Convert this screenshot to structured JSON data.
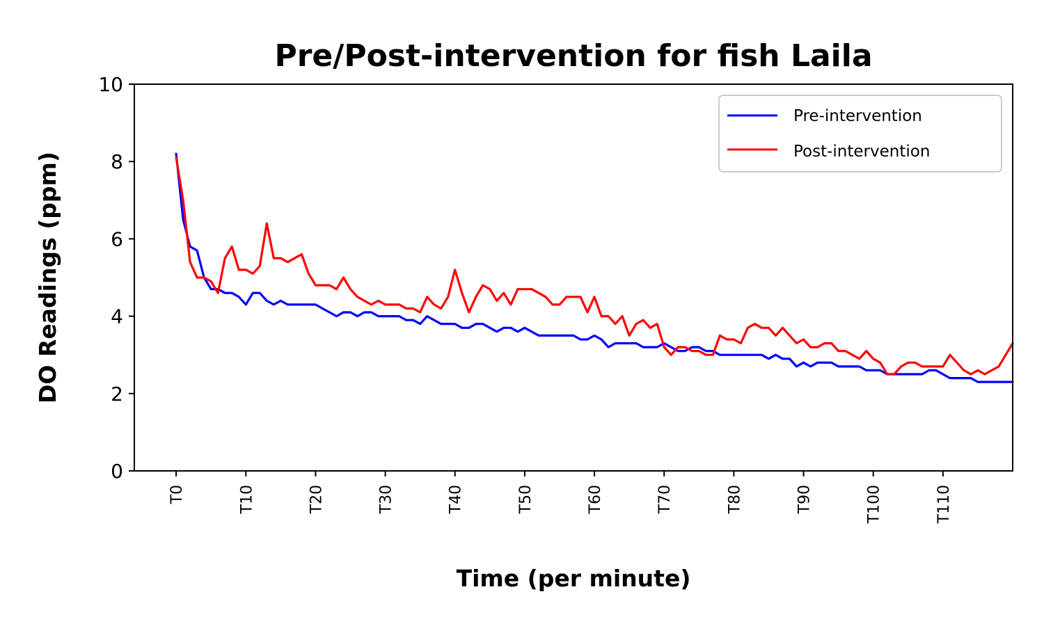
{
  "chart_data": {
    "type": "line",
    "title": "Pre/Post-intervention for fish Laila",
    "xlabel": "Time (per minute)",
    "ylabel": "DO Readings (ppm)",
    "ylim": [
      0,
      10
    ],
    "yticks": [
      0,
      2,
      4,
      6,
      8,
      10
    ],
    "xlim": [
      -6,
      120
    ],
    "xtick_values": [
      0,
      10,
      20,
      30,
      40,
      50,
      60,
      70,
      80,
      90,
      100,
      110
    ],
    "xtick_labels": [
      "T0",
      "T10",
      "T20",
      "T30",
      "T40",
      "T50",
      "T60",
      "T70",
      "T80",
      "T90",
      "T100",
      "T110"
    ],
    "legend_position": "upper right",
    "grid": false,
    "series": [
      {
        "name": "Pre-intervention",
        "color": "#0000ff",
        "values": [
          8.2,
          6.5,
          5.8,
          5.7,
          5.0,
          4.7,
          4.7,
          4.6,
          4.6,
          4.5,
          4.3,
          4.6,
          4.6,
          4.4,
          4.3,
          4.4,
          4.3,
          4.3,
          4.3,
          4.3,
          4.3,
          4.2,
          4.1,
          4.0,
          4.1,
          4.1,
          4.0,
          4.1,
          4.1,
          4.0,
          4.0,
          4.0,
          4.0,
          3.9,
          3.9,
          3.8,
          4.0,
          3.9,
          3.8,
          3.8,
          3.8,
          3.7,
          3.7,
          3.8,
          3.8,
          3.7,
          3.6,
          3.7,
          3.7,
          3.6,
          3.7,
          3.6,
          3.5,
          3.5,
          3.5,
          3.5,
          3.5,
          3.5,
          3.4,
          3.4,
          3.5,
          3.4,
          3.2,
          3.3,
          3.3,
          3.3,
          3.3,
          3.2,
          3.2,
          3.2,
          3.3,
          3.2,
          3.1,
          3.1,
          3.2,
          3.2,
          3.1,
          3.1,
          3.0,
          3.0,
          3.0,
          3.0,
          3.0,
          3.0,
          3.0,
          2.9,
          3.0,
          2.9,
          2.9,
          2.7,
          2.8,
          2.7,
          2.8,
          2.8,
          2.8,
          2.7,
          2.7,
          2.7,
          2.7,
          2.6,
          2.6,
          2.6,
          2.5,
          2.5,
          2.5,
          2.5,
          2.5,
          2.5,
          2.6,
          2.6,
          2.5,
          2.4,
          2.4,
          2.4,
          2.4,
          2.3,
          2.3,
          2.3,
          2.3,
          2.3,
          2.3
        ]
      },
      {
        "name": "Post-intervention",
        "color": "#ff0000",
        "values": [
          8.1,
          7.0,
          5.4,
          5.0,
          5.0,
          4.9,
          4.6,
          5.5,
          5.8,
          5.2,
          5.2,
          5.1,
          5.3,
          6.4,
          5.5,
          5.5,
          5.4,
          5.5,
          5.6,
          5.1,
          4.8,
          4.8,
          4.8,
          4.7,
          5.0,
          4.7,
          4.5,
          4.4,
          4.3,
          4.4,
          4.3,
          4.3,
          4.3,
          4.2,
          4.2,
          4.1,
          4.5,
          4.3,
          4.2,
          4.5,
          5.2,
          4.6,
          4.1,
          4.5,
          4.8,
          4.7,
          4.4,
          4.6,
          4.3,
          4.7,
          4.7,
          4.7,
          4.6,
          4.5,
          4.3,
          4.3,
          4.5,
          4.5,
          4.5,
          4.1,
          4.5,
          4.0,
          4.0,
          3.8,
          4.0,
          3.5,
          3.8,
          3.9,
          3.7,
          3.8,
          3.2,
          3.0,
          3.2,
          3.2,
          3.1,
          3.1,
          3.0,
          3.0,
          3.5,
          3.4,
          3.4,
          3.3,
          3.7,
          3.8,
          3.7,
          3.7,
          3.5,
          3.7,
          3.5,
          3.3,
          3.4,
          3.2,
          3.2,
          3.3,
          3.3,
          3.1,
          3.1,
          3.0,
          2.9,
          3.1,
          2.9,
          2.8,
          2.5,
          2.5,
          2.7,
          2.8,
          2.8,
          2.7,
          2.7,
          2.7,
          2.7,
          3.0,
          2.8,
          2.6,
          2.5,
          2.6,
          2.5,
          2.6,
          2.7,
          3.0,
          3.3
        ]
      }
    ]
  }
}
